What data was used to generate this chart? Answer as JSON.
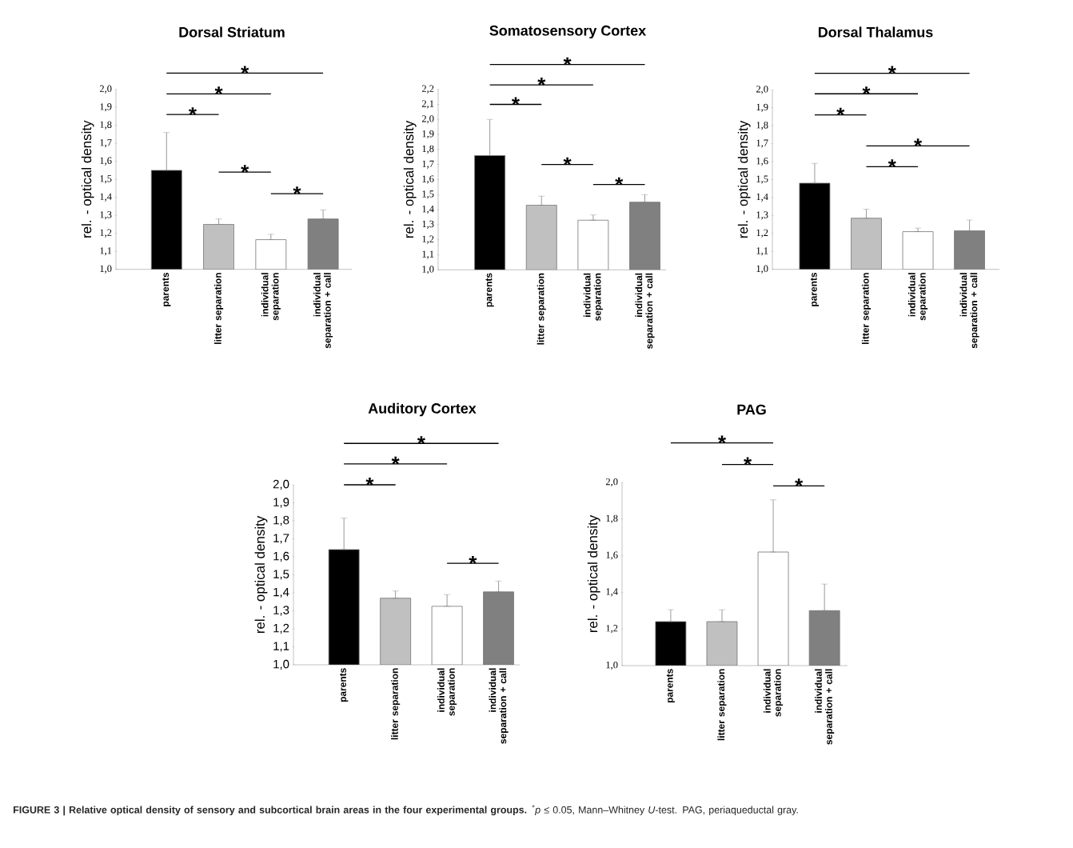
{
  "chart_data": [
    {
      "type": "bar",
      "title": "Dorsal Striatum",
      "ylabel": "rel. - optical density",
      "categories": [
        "parents",
        "litter separation",
        "individual separation",
        "individual separation + call"
      ],
      "values": [
        1.55,
        1.25,
        1.165,
        1.28
      ],
      "colors": [
        "#000000",
        "#c0c0c0",
        "#ffffff",
        "#808080"
      ],
      "errors": [
        [
          1.55,
          1.76
        ],
        [
          1.25,
          1.28
        ],
        [
          1.165,
          1.195
        ],
        [
          1.28,
          1.33
        ]
      ],
      "ylim": [
        1.0,
        2.0
      ],
      "yticks": [
        {
          "value": 1.0,
          "label": "1,0"
        },
        {
          "value": 1.1,
          "label": "1,1"
        },
        {
          "value": 1.2,
          "label": "1,2"
        },
        {
          "value": 1.3,
          "label": "1,3"
        },
        {
          "value": 1.4,
          "label": "1,4"
        },
        {
          "value": 1.5,
          "label": "1,5"
        },
        {
          "value": 1.6,
          "label": "1,6"
        },
        {
          "value": 1.7,
          "label": "1,7"
        },
        {
          "value": 1.8,
          "label": "1,8"
        },
        {
          "value": 1.9,
          "label": "1,9"
        },
        {
          "value": 2.0,
          "label": "2,0"
        }
      ],
      "annotations": [
        "*",
        "*",
        "*",
        "*",
        "*"
      ]
    },
    {
      "type": "bar",
      "title": "Somatosensory Cortex",
      "ylabel": "rel. - optical density",
      "categories": [
        "parents",
        "litter separation",
        "individual separation",
        "individual separation + call"
      ],
      "values": [
        1.76,
        1.43,
        1.33,
        1.45
      ],
      "colors": [
        "#000000",
        "#c0c0c0",
        "#ffffff",
        "#808080"
      ],
      "errors": [
        [
          1.76,
          2.0
        ],
        [
          1.43,
          1.49
        ],
        [
          1.33,
          1.365
        ],
        [
          1.45,
          1.5
        ]
      ],
      "ylim": [
        1.0,
        2.2
      ],
      "yticks": [
        {
          "value": 1.0,
          "label": "1,0"
        },
        {
          "value": 1.1,
          "label": "1,1"
        },
        {
          "value": 1.2,
          "label": "1,2"
        },
        {
          "value": 1.3,
          "label": "1,3"
        },
        {
          "value": 1.4,
          "label": "1,4"
        },
        {
          "value": 1.5,
          "label": "1,5"
        },
        {
          "value": 1.6,
          "label": "1,6"
        },
        {
          "value": 1.7,
          "label": "1,7"
        },
        {
          "value": 1.8,
          "label": "1,8"
        },
        {
          "value": 1.9,
          "label": "1,9"
        },
        {
          "value": 2.0,
          "label": "2,0"
        },
        {
          "value": 2.1,
          "label": "2,1"
        },
        {
          "value": 2.2,
          "label": "2,2"
        }
      ],
      "annotations": [
        "*",
        "*",
        "*",
        "*",
        "*"
      ]
    },
    {
      "type": "bar",
      "title": "Dorsal Thalamus",
      "ylabel": "rel. - optical density",
      "categories": [
        "parents",
        "litter separation",
        "individual separation",
        "individual separation + call"
      ],
      "values": [
        1.48,
        1.285,
        1.21,
        1.215
      ],
      "colors": [
        "#000000",
        "#c0c0c0",
        "#ffffff",
        "#808080"
      ],
      "errors": [
        [
          1.48,
          1.59
        ],
        [
          1.285,
          1.335
        ],
        [
          1.21,
          1.23
        ],
        [
          1.215,
          1.275
        ]
      ],
      "ylim": [
        1.0,
        2.0
      ],
      "yticks": [
        {
          "value": 1.0,
          "label": "1,0"
        },
        {
          "value": 1.1,
          "label": "1,1"
        },
        {
          "value": 1.2,
          "label": "1,2"
        },
        {
          "value": 1.3,
          "label": "1,3"
        },
        {
          "value": 1.4,
          "label": "1,4"
        },
        {
          "value": 1.5,
          "label": "1,5"
        },
        {
          "value": 1.6,
          "label": "1,6"
        },
        {
          "value": 1.7,
          "label": "1,7"
        },
        {
          "value": 1.8,
          "label": "1,8"
        },
        {
          "value": 1.9,
          "label": "1,9"
        },
        {
          "value": 2.0,
          "label": "2,0"
        }
      ],
      "annotations": [
        "*",
        "*",
        "*",
        "*",
        "*"
      ]
    },
    {
      "type": "bar",
      "title": "Auditory Cortex",
      "ylabel": "rel. - optical density",
      "categories": [
        "parents",
        "litter separation",
        "individual separation",
        "individual separation + call"
      ],
      "values": [
        1.64,
        1.37,
        1.325,
        1.405
      ],
      "colors": [
        "#000000",
        "#c0c0c0",
        "#ffffff",
        "#808080"
      ],
      "errors": [
        [
          1.64,
          1.815
        ],
        [
          1.37,
          1.41
        ],
        [
          1.325,
          1.39
        ],
        [
          1.405,
          1.465
        ]
      ],
      "ylim": [
        1.0,
        2.0
      ],
      "yticks": [
        {
          "value": 1.0,
          "label": "1,0"
        },
        {
          "value": 1.1,
          "label": "1,1"
        },
        {
          "value": 1.2,
          "label": "1,2"
        },
        {
          "value": 1.3,
          "label": "1,3"
        },
        {
          "value": 1.4,
          "label": "1,4"
        },
        {
          "value": 1.5,
          "label": "1,5"
        },
        {
          "value": 1.6,
          "label": "1,6"
        },
        {
          "value": 1.7,
          "label": "1,7"
        },
        {
          "value": 1.8,
          "label": "1,8"
        },
        {
          "value": 1.9,
          "label": "1,9"
        },
        {
          "value": 2.0,
          "label": "2,0"
        }
      ],
      "annotations": [
        "*",
        "*",
        "*",
        "*"
      ]
    },
    {
      "type": "bar",
      "title": "PAG",
      "ylabel": "rel. - optical density",
      "categories": [
        "parents",
        "litter separation",
        "individual separation",
        "individual separation + call"
      ],
      "values": [
        1.24,
        1.24,
        1.62,
        1.3
      ],
      "colors": [
        "#000000",
        "#c0c0c0",
        "#ffffff",
        "#808080"
      ],
      "errors": [
        [
          1.24,
          1.305
        ],
        [
          1.24,
          1.305
        ],
        [
          1.62,
          1.905
        ],
        [
          1.3,
          1.445
        ]
      ],
      "ylim": [
        1.0,
        2.0
      ],
      "yticks": [
        {
          "value": 1.0,
          "label": "1,0"
        },
        {
          "value": 1.2,
          "label": "1,2"
        },
        {
          "value": 1.4,
          "label": "1,4"
        },
        {
          "value": 1.6,
          "label": "1,6"
        },
        {
          "value": 1.8,
          "label": "1,8"
        },
        {
          "value": 2.0,
          "label": "2,0"
        }
      ],
      "annotations": [
        "*",
        "*",
        "*"
      ]
    },
    {
      "type": "other",
      "annotations": [
        "**FIGURE 3 | Relative optical density of sensory and subcortical brain areas in the four experimental groups.** $^{*}$*p* ≤ 0.05, Mann–Whitney *U*-test. PAG, periaqueductal gray."
      ]
    }
  ]
}
